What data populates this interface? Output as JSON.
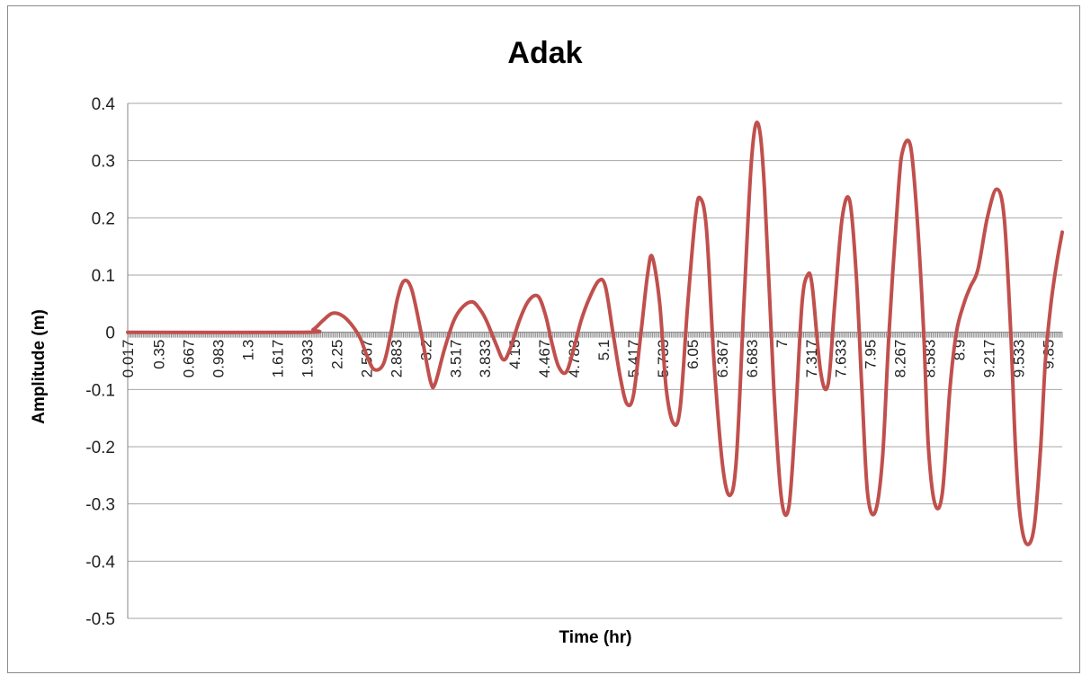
{
  "chart_data": {
    "type": "line",
    "title": "Adak",
    "xlabel": "Time (hr)",
    "ylabel": "Amplitude (m)",
    "ylim": [
      -0.5,
      0.4
    ],
    "xlim": [
      0.017,
      10.0
    ],
    "grid": true,
    "legend": "none",
    "yticks": [
      "0.4",
      "0.3",
      "0.2",
      "0.1",
      "0",
      "-0.1",
      "-0.2",
      "-0.3",
      "-0.4",
      "-0.5"
    ],
    "xticks": [
      "0.017",
      "0.35",
      "0.667",
      "0.983",
      "1.3",
      "1.617",
      "1.933",
      "2.25",
      "2.567",
      "2.883",
      "3.2",
      "3.517",
      "3.833",
      "4.15",
      "4.467",
      "4.783",
      "5.1",
      "5.417",
      "5.733",
      "6.05",
      "6.367",
      "6.683",
      "7",
      "7.317",
      "7.633",
      "7.95",
      "8.267",
      "8.583",
      "8.9",
      "9.217",
      "9.533",
      "9.85"
    ],
    "series": [
      {
        "color": "#c0504d",
        "x": [
          0.017,
          1.9,
          2.0,
          2.1,
          2.2,
          2.3,
          2.4,
          2.5,
          2.57,
          2.65,
          2.75,
          2.83,
          2.9,
          2.97,
          3.05,
          3.15,
          3.25,
          3.3,
          3.4,
          3.5,
          3.6,
          3.7,
          3.78,
          3.85,
          3.95,
          4.03,
          4.1,
          4.2,
          4.3,
          4.4,
          4.48,
          4.55,
          4.62,
          4.7,
          4.78,
          4.86,
          4.95,
          5.05,
          5.12,
          5.2,
          5.28,
          5.35,
          5.42,
          5.5,
          5.57,
          5.62,
          5.7,
          5.77,
          5.85,
          5.92,
          6.0,
          6.08,
          6.13,
          6.2,
          6.28,
          6.37,
          6.45,
          6.52,
          6.6,
          6.68,
          6.75,
          6.82,
          6.92,
          7.0,
          7.08,
          7.15,
          7.22,
          7.28,
          7.33,
          7.42,
          7.5,
          7.57,
          7.65,
          7.73,
          7.8,
          7.86,
          7.92,
          8.0,
          8.08,
          8.15,
          8.25,
          8.3,
          8.38,
          8.45,
          8.52,
          8.57,
          8.64,
          8.72,
          8.8,
          8.87,
          8.95,
          9.02,
          9.1,
          9.2,
          9.3,
          9.38,
          9.45,
          9.5,
          9.55,
          9.62,
          9.7,
          9.77,
          9.82,
          9.88,
          9.94,
          10.0
        ],
        "y": [
          0.0,
          0.0,
          0.005,
          0.02,
          0.033,
          0.03,
          0.015,
          -0.01,
          -0.04,
          -0.065,
          -0.055,
          0.0,
          0.06,
          0.09,
          0.075,
          0.0,
          -0.085,
          -0.09,
          -0.03,
          0.02,
          0.045,
          0.053,
          0.04,
          0.02,
          -0.02,
          -0.048,
          -0.03,
          0.02,
          0.055,
          0.063,
          0.03,
          -0.02,
          -0.06,
          -0.07,
          -0.03,
          0.02,
          0.06,
          0.09,
          0.08,
          0.0,
          -0.08,
          -0.125,
          -0.11,
          0.0,
          0.1,
          0.132,
          0.05,
          -0.1,
          -0.16,
          -0.13,
          0.05,
          0.2,
          0.235,
          0.18,
          -0.05,
          -0.23,
          -0.285,
          -0.22,
          0.05,
          0.3,
          0.365,
          0.25,
          -0.1,
          -0.29,
          -0.305,
          -0.15,
          0.05,
          0.1,
          0.08,
          -0.07,
          -0.09,
          0.05,
          0.2,
          0.23,
          0.1,
          -0.1,
          -0.28,
          -0.315,
          -0.22,
          0.0,
          0.25,
          0.32,
          0.325,
          0.2,
          0.0,
          -0.2,
          -0.3,
          -0.28,
          -0.1,
          0.0,
          0.05,
          0.08,
          0.11,
          0.2,
          0.25,
          0.2,
          0.0,
          -0.2,
          -0.32,
          -0.37,
          -0.34,
          -0.2,
          -0.05,
          0.05,
          0.12,
          0.175
        ]
      }
    ]
  }
}
